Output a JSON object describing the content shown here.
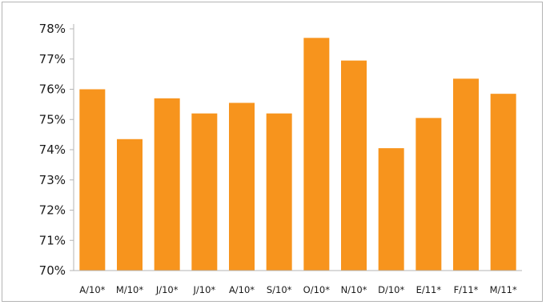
{
  "chart_data": {
    "type": "bar",
    "title": "",
    "xlabel": "",
    "ylabel": "",
    "categories": [
      "A/10*",
      "M/10*",
      "J/10*",
      "J/10*",
      "A/10*",
      "S/10*",
      "O/10*",
      "N/10*",
      "D/10*",
      "E/11*",
      "F/11*",
      "M/11*"
    ],
    "values": [
      76.0,
      74.35,
      75.7,
      75.2,
      75.55,
      75.2,
      77.7,
      76.95,
      74.05,
      75.05,
      76.35,
      75.85
    ],
    "ylim": [
      70,
      78
    ],
    "yticks": [
      "70%",
      "71%",
      "72%",
      "73%",
      "74%",
      "75%",
      "76%",
      "77%",
      "78%"
    ],
    "grid": false,
    "legend": "none",
    "bar_color": "#f7941d",
    "axis_color": "#b4b4b4"
  }
}
